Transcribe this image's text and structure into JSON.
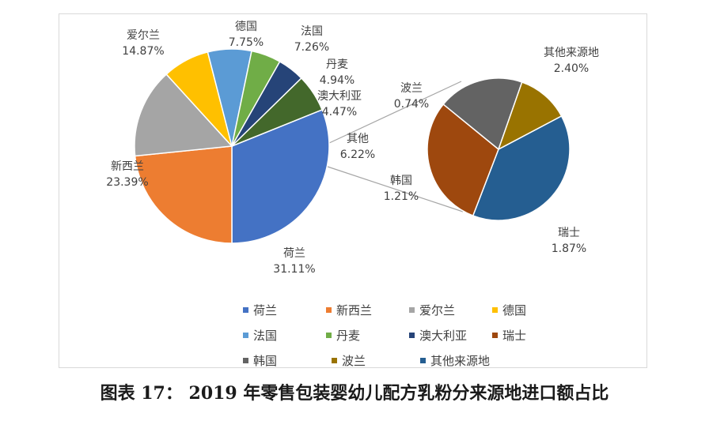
{
  "caption": "图表 17：  2019 年零售包装婴幼儿配方乳粉分来源地进口额占比",
  "chart_data": {
    "type": "pie",
    "subtype": "pie-of-pie",
    "main_pie": [
      {
        "name": "荷兰",
        "value": 31.11,
        "label": "31.11%",
        "color": "#4472C4"
      },
      {
        "name": "新西兰",
        "value": 23.39,
        "label": "23.39%",
        "color": "#ED7D31"
      },
      {
        "name": "爱尔兰",
        "value": 14.87,
        "label": "14.87%",
        "color": "#A5A5A5"
      },
      {
        "name": "德国",
        "value": 7.75,
        "label": "7.75%",
        "color": "#FFC000"
      },
      {
        "name": "法国",
        "value": 7.26,
        "label": "7.26%",
        "color": "#5B9BD5"
      },
      {
        "name": "丹麦",
        "value": 4.94,
        "label": "4.94%",
        "color": "#70AD47"
      },
      {
        "name": "澳大利亚",
        "value": 4.47,
        "label": "4.47%",
        "color": "#264478"
      },
      {
        "name": "其他",
        "value": 6.22,
        "label": "6.22%",
        "color": "#43682B"
      }
    ],
    "secondary_pie": [
      {
        "name": "其他来源地",
        "value": 2.4,
        "label": "2.40%",
        "color": "#255E91"
      },
      {
        "name": "瑞士",
        "value": 1.87,
        "label": "1.87%",
        "color": "#9E480E"
      },
      {
        "name": "韩国",
        "value": 1.21,
        "label": "1.21%",
        "color": "#636363"
      },
      {
        "name": "波兰",
        "value": 0.74,
        "label": "0.74%",
        "color": "#997300"
      }
    ],
    "legend": {
      "position": "bottom",
      "rows": [
        [
          {
            "name": "荷兰",
            "color": "#4472C4"
          },
          {
            "name": "新西兰",
            "color": "#ED7D31"
          },
          {
            "name": "爱尔兰",
            "color": "#A5A5A5"
          },
          {
            "name": "德国",
            "color": "#FFC000"
          }
        ],
        [
          {
            "name": "法国",
            "color": "#5B9BD5"
          },
          {
            "name": "丹麦",
            "color": "#70AD47"
          },
          {
            "name": "澳大利亚",
            "color": "#264478"
          },
          {
            "name": "瑞士",
            "color": "#9E480E"
          }
        ],
        [
          {
            "name": "韩国",
            "color": "#636363"
          },
          {
            "name": "波兰",
            "color": "#997300"
          },
          {
            "name": "其他来源地",
            "color": "#255E91"
          }
        ]
      ]
    }
  }
}
